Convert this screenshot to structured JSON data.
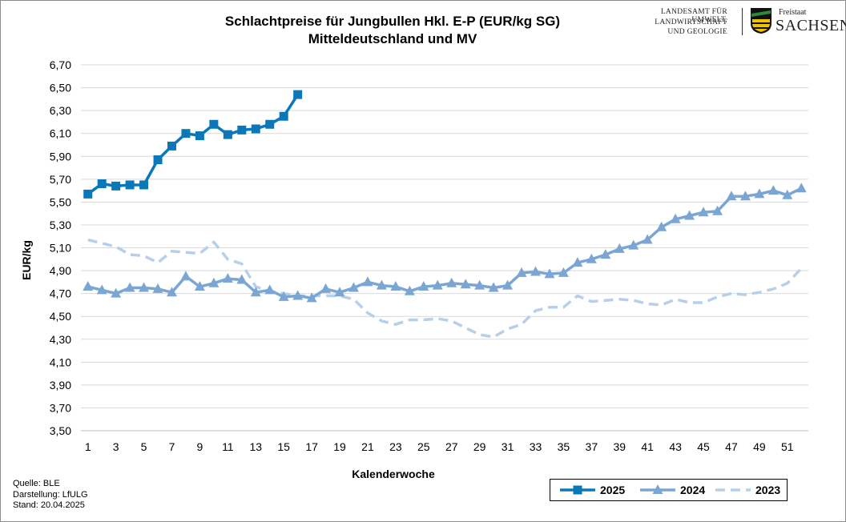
{
  "header": {
    "title_line1": "Schlachtpreise für Jungbullen Hkl. E-P (EUR/kg  SG)",
    "title_line2": "Mitteldeutschland und MV"
  },
  "logo": {
    "lfulg_line1": "LANDESAMT FÜR UMWELT,",
    "lfulg_line2": "LANDWIRTSCHAFT",
    "lfulg_line3": "UND GEOLOGIE",
    "freistaat": "Freistaat",
    "sachsen": "SACHSEN",
    "colors": {
      "green": "#2d8a3a",
      "yellow": "#f2c200",
      "black": "#111111"
    }
  },
  "footer": {
    "source": "Quelle: BLE",
    "darstellung": "Darstellung: LfULG",
    "stand": "Stand: 20.04.2025"
  },
  "chart_data": {
    "type": "line",
    "xlabel": "Kalenderwoche",
    "ylabel": "EUR/kg",
    "ylim": [
      3.5,
      6.7
    ],
    "yticks": [
      "6,70",
      "6,50",
      "6,30",
      "6,10",
      "5,90",
      "5,70",
      "5,50",
      "5,30",
      "5,10",
      "4,90",
      "4,70",
      "4,50",
      "4,30",
      "4,10",
      "3,90",
      "3,70",
      "3,50"
    ],
    "xticks": [
      "1",
      "3",
      "5",
      "7",
      "9",
      "11",
      "13",
      "15",
      "17",
      "19",
      "21",
      "23",
      "25",
      "27",
      "29",
      "31",
      "33",
      "35",
      "37",
      "39",
      "41",
      "43",
      "45",
      "47",
      "49",
      "51"
    ],
    "x_range": [
      1,
      52
    ],
    "grid": true,
    "legend_position": "bottom-right",
    "series": [
      {
        "name": "2025",
        "color": "#0a78b8",
        "style": "solid-square",
        "x": [
          1,
          2,
          3,
          4,
          5,
          6,
          7,
          8,
          9,
          10,
          11,
          12,
          13,
          14,
          15,
          16
        ],
        "values": [
          5.57,
          5.66,
          5.64,
          5.65,
          5.65,
          5.87,
          5.99,
          6.1,
          6.08,
          6.18,
          6.09,
          6.13,
          6.14,
          6.18,
          6.25,
          6.44
        ]
      },
      {
        "name": "2024",
        "color": "#7ba6d4",
        "style": "solid-triangle",
        "x": [
          1,
          2,
          3,
          4,
          5,
          6,
          7,
          8,
          9,
          10,
          11,
          12,
          13,
          14,
          15,
          16,
          17,
          18,
          19,
          20,
          21,
          22,
          23,
          24,
          25,
          26,
          27,
          28,
          29,
          30,
          31,
          32,
          33,
          34,
          35,
          36,
          37,
          38,
          39,
          40,
          41,
          42,
          43,
          44,
          45,
          46,
          47,
          48,
          49,
          50,
          51,
          52
        ],
        "values": [
          4.76,
          4.73,
          4.7,
          4.75,
          4.75,
          4.74,
          4.71,
          4.85,
          4.76,
          4.79,
          4.83,
          4.82,
          4.71,
          4.73,
          4.67,
          4.68,
          4.66,
          4.74,
          4.71,
          4.75,
          4.8,
          4.77,
          4.76,
          4.72,
          4.76,
          4.77,
          4.79,
          4.78,
          4.77,
          4.75,
          4.77,
          4.88,
          4.89,
          4.87,
          4.88,
          4.97,
          5.0,
          5.04,
          5.09,
          5.12,
          5.17,
          5.28,
          5.35,
          5.38,
          5.41,
          5.42,
          5.55,
          5.55,
          5.57,
          5.6,
          5.56,
          5.62
        ]
      },
      {
        "name": "2023",
        "color": "#b6d0ea",
        "style": "dashed",
        "x": [
          1,
          2,
          3,
          4,
          5,
          6,
          7,
          8,
          9,
          10,
          11,
          12,
          13,
          14,
          15,
          16,
          17,
          18,
          19,
          20,
          21,
          22,
          23,
          24,
          25,
          26,
          27,
          28,
          29,
          30,
          31,
          32,
          33,
          34,
          35,
          36,
          37,
          38,
          39,
          40,
          41,
          42,
          43,
          44,
          45,
          46,
          47,
          48,
          49,
          50,
          51,
          52
        ],
        "values": [
          5.17,
          5.14,
          5.11,
          5.04,
          5.03,
          4.97,
          5.07,
          5.06,
          5.05,
          5.15,
          5.0,
          4.96,
          4.76,
          4.72,
          4.7,
          4.68,
          4.68,
          4.68,
          4.68,
          4.65,
          4.53,
          4.46,
          4.43,
          4.47,
          4.47,
          4.48,
          4.46,
          4.4,
          4.34,
          4.32,
          4.39,
          4.43,
          4.55,
          4.58,
          4.58,
          4.68,
          4.63,
          4.64,
          4.65,
          4.64,
          4.61,
          4.6,
          4.65,
          4.62,
          4.62,
          4.67,
          4.7,
          4.69,
          4.71,
          4.74,
          4.79,
          4.92
        ]
      }
    ]
  }
}
